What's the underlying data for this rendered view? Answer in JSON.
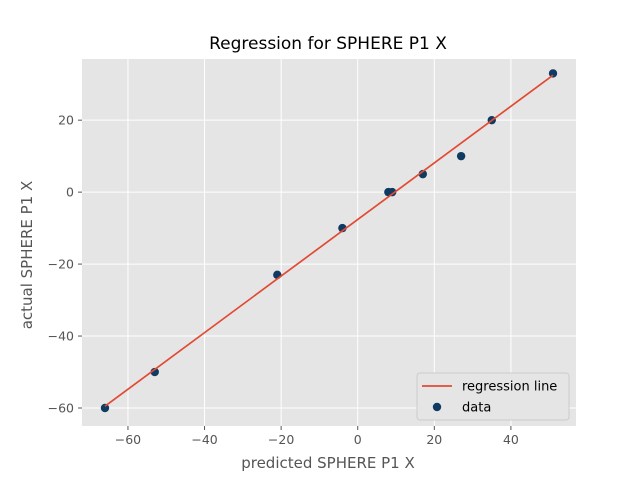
{
  "chart_data": {
    "type": "scatter",
    "title": "Regression for SPHERE P1 X",
    "xlabel": "predicted SPHERE P1 X",
    "ylabel": "actual SPHERE P1 X",
    "xlim": [
      -72,
      57
    ],
    "ylim": [
      -65,
      37
    ],
    "xticks": [
      -60,
      -40,
      -20,
      0,
      20,
      40
    ],
    "yticks": [
      -60,
      -40,
      -20,
      0,
      20
    ],
    "grid": true,
    "legend_position": "lower-right",
    "series": [
      {
        "name": "data",
        "kind": "scatter",
        "color": "#0f3b63",
        "x": [
          -66,
          -53,
          -21,
          -4,
          8,
          9,
          17,
          27,
          35,
          51
        ],
        "y": [
          -60,
          -50,
          -23,
          -10,
          0,
          0,
          5,
          10,
          20,
          33
        ]
      },
      {
        "name": "regression line",
        "kind": "line",
        "color": "#e24a33",
        "x": [
          -66,
          51
        ],
        "y": [
          -59.5,
          32.5
        ]
      }
    ],
    "background": "#e5e5e5",
    "grid_color": "#ffffff"
  }
}
